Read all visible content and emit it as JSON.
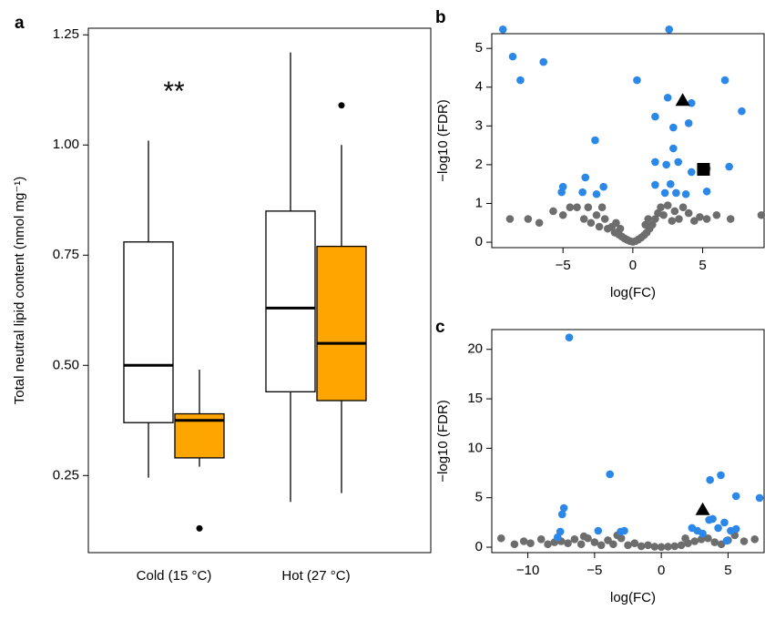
{
  "chart_data": [
    {
      "type": "box",
      "panel_label": "a",
      "y_label": "Total neutral lipid content (nmol mg⁻¹)",
      "annotation": "**",
      "categories": [
        "Cold (15 °C)",
        "Hot (27 °C)"
      ],
      "series": [
        {
          "color": "#ffffff",
          "whislo": [
            0.245,
            0.19
          ],
          "q1": [
            0.37,
            0.44
          ],
          "median": [
            0.5,
            0.63
          ],
          "q3": [
            0.78,
            0.85
          ],
          "whishi": [
            1.01,
            1.21
          ],
          "outliers": [
            [],
            []
          ]
        },
        {
          "color": "#ffa500",
          "whislo": [
            0.27,
            0.21
          ],
          "q1": [
            0.29,
            0.42
          ],
          "median": [
            0.375,
            0.55
          ],
          "q3": [
            0.39,
            0.77
          ],
          "whishi": [
            0.49,
            1.0
          ],
          "outliers": [
            [
              0.13
            ],
            [
              1.09
            ]
          ]
        }
      ],
      "ylim": [
        0.075,
        1.265
      ],
      "yticks": [
        0.25,
        {
          "value": 0.5,
          "label": "0.50"
        },
        0.75,
        {
          "value": 1,
          "label": "1.00"
        },
        1.25
      ]
    },
    {
      "type": "scatter",
      "panel_label": "b",
      "x_label": "log(FC)",
      "y_label": "−log10 (FDR)",
      "xlim": [
        -10.1,
        9.4
      ],
      "ylim": [
        -0.14,
        5.38
      ],
      "xticks": [
        {
          "value": -5,
          "label": "−5"
        },
        0,
        5
      ],
      "yticks": [
        0,
        1,
        2,
        3,
        4,
        5
      ],
      "series": [
        {
          "color": "#6d6d6d",
          "marker": "circle",
          "x": [
            -8.8,
            -7.5,
            -6.7,
            -5.7,
            -5.0,
            -4.5,
            -4.0,
            -3.5,
            -3.2,
            -3.0,
            -2.6,
            -2.4,
            -2.0,
            -1.8,
            -1.5,
            -1.3,
            -1.0,
            -0.8,
            -0.6,
            -0.4,
            -0.2,
            0,
            0.2,
            0.4,
            0.6,
            0.8,
            1.0,
            1.2,
            1.4,
            1.6,
            1.8,
            2.0,
            2.2,
            2.5,
            2.8,
            3.0,
            3.3,
            3.6,
            4.0,
            4.4,
            4.8,
            5.3,
            6.0,
            7.0,
            9.2,
            -1.2,
            1.1,
            -2.2,
            0.9,
            -0.9
          ],
          "y": [
            0.6,
            0.6,
            0.5,
            0.8,
            0.7,
            0.9,
            0.9,
            0.6,
            0.9,
            0.5,
            0.7,
            0.4,
            0.6,
            0.35,
            0.4,
            0.25,
            0.2,
            0.15,
            0.1,
            0.06,
            0.03,
            0.01,
            0.03,
            0.07,
            0.12,
            0.18,
            0.25,
            0.35,
            0.45,
            0.6,
            0.75,
            0.9,
            0.7,
            0.95,
            0.55,
            0.8,
            0.6,
            0.9,
            0.75,
            0.55,
            0.65,
            0.6,
            0.7,
            0.6,
            0.7,
            0.5,
            0.6,
            0.9,
            0.45,
            0.35
          ]
        },
        {
          "color": "#2b88e8",
          "marker": "circle",
          "x": [
            -9.3,
            -8.6,
            -8.05,
            -6.4,
            0.3,
            2.6,
            2.5,
            4.2,
            6.6,
            7.8,
            1.6,
            2.9,
            4.0,
            -2.7,
            2.9,
            1.6,
            2.4,
            3.25,
            4.2,
            5.3,
            6.9,
            -5.0,
            -5.1,
            -3.4,
            -2.1,
            -2.6,
            -3.6,
            1.6,
            2.7,
            3.1,
            3.8,
            5.3,
            2.3
          ],
          "y": [
            5.49,
            4.79,
            4.18,
            4.65,
            4.18,
            5.49,
            3.73,
            3.59,
            4.18,
            3.38,
            3.24,
            2.96,
            3.07,
            2.63,
            2.42,
            2.07,
            2.0,
            2.07,
            1.81,
            1.9,
            1.95,
            1.43,
            1.29,
            1.67,
            1.43,
            1.24,
            1.29,
            1.48,
            1.5,
            1.27,
            1.24,
            1.31,
            1.27
          ]
        },
        {
          "color": "#000000",
          "marker": "triangle",
          "x": [
            3.57
          ],
          "y": [
            3.66
          ]
        },
        {
          "color": "#000000",
          "marker": "square",
          "x": [
            5.06
          ],
          "y": [
            1.88
          ]
        }
      ]
    },
    {
      "type": "scatter",
      "panel_label": "c",
      "x_label": "log(FC)",
      "y_label": "−log10 (FDR)",
      "xlim": [
        -12.7,
        7.7
      ],
      "ylim": [
        -0.55,
        22
      ],
      "xticks": [
        {
          "value": -10,
          "label": "−10"
        },
        {
          "value": -5,
          "label": "−5"
        },
        0,
        5
      ],
      "yticks": [
        0,
        5,
        10,
        15,
        20
      ],
      "series": [
        {
          "color": "#6d6d6d",
          "marker": "circle",
          "x": [
            -12.0,
            -10.3,
            -9.8,
            -8.5,
            -8.0,
            -7.0,
            -6.5,
            -6.0,
            -5.5,
            -5.0,
            -4.5,
            -4.0,
            -3.6,
            -3.0,
            -2.5,
            -2.0,
            -1.5,
            -1.0,
            -0.5,
            0,
            0.5,
            1.0,
            1.5,
            2.0,
            2.5,
            3.0,
            3.5,
            4.0,
            4.5,
            5.0,
            5.5,
            6.2,
            7.0,
            -7.5,
            -9.0,
            -5.8,
            -3.3,
            1.8,
            -11.0
          ],
          "y": [
            0.9,
            0.6,
            0.4,
            0.3,
            0.5,
            0.4,
            0.8,
            0.3,
            0.9,
            0.5,
            0.2,
            0.7,
            0.3,
            0.9,
            0.2,
            0.4,
            0.1,
            0.2,
            0.05,
            0.02,
            0.05,
            0.1,
            0.2,
            0.4,
            0.6,
            0.8,
            0.9,
            0.5,
            0.3,
            0.7,
            1.2,
            0.6,
            0.8,
            0.6,
            0.8,
            1.1,
            1.2,
            0.9,
            0.3
          ]
        },
        {
          "color": "#2b88e8",
          "marker": "circle",
          "x": [
            -6.9,
            -3.85,
            4.46,
            3.65,
            5.6,
            7.36,
            -7.3,
            -7.43,
            -7.57,
            -7.77,
            -4.73,
            -2.77,
            -3.04,
            3.58,
            3.85,
            4.26,
            4.73,
            5.2,
            2.3,
            2.7,
            3.1,
            5.6,
            4.9
          ],
          "y": [
            21.2,
            7.37,
            7.28,
            6.8,
            5.16,
            4.98,
            3.96,
            3.32,
            1.57,
            1.0,
            1.66,
            1.66,
            1.57,
            2.76,
            2.86,
            1.94,
            2.49,
            1.66,
            1.94,
            1.66,
            1.38,
            1.84,
            0.65
          ]
        },
        {
          "color": "#000000",
          "marker": "triangle",
          "x": [
            3.1
          ],
          "y": [
            3.8
          ]
        }
      ]
    }
  ]
}
